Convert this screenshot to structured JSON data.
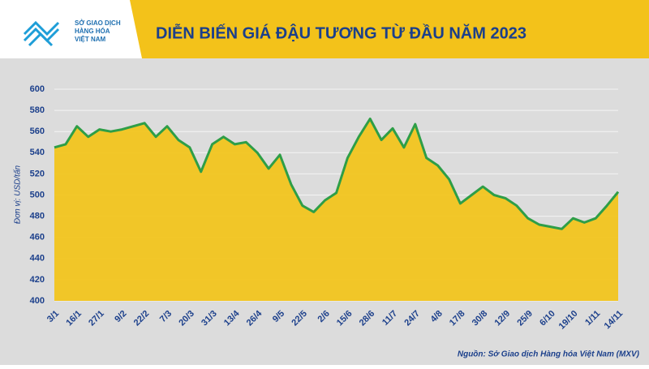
{
  "header": {
    "logo": [
      "SỞ GIAO DỊCH",
      "HÀNG HÓA",
      "VIỆT NAM"
    ]
  },
  "chart_data": {
    "type": "area",
    "title": "DIỄN BIẾN GIÁ ĐẬU TƯƠNG TỪ ĐẦU NĂM 2023",
    "y_label": "Đơn vị: USD/tấn",
    "source": "Nguồn: Sở Giao dịch Hàng hóa Việt Nam (MXV)",
    "categories": [
      "3/1",
      null,
      "16/1",
      null,
      "27/1",
      null,
      "9/2",
      null,
      "22/2",
      null,
      "7/3",
      null,
      "20/3",
      null,
      "31/3",
      null,
      "13/4",
      null,
      "26/4",
      null,
      "9/5",
      null,
      "22/5",
      null,
      "2/6",
      null,
      "15/6",
      null,
      "28/6",
      null,
      "11/7",
      null,
      "24/7",
      null,
      "4/8",
      null,
      "17/8",
      null,
      "30/8",
      null,
      "12/9",
      null,
      "25/9",
      null,
      "6/10",
      null,
      "19/10",
      null,
      "1/11",
      null,
      "14/11"
    ],
    "values": [
      545,
      548,
      565,
      555,
      562,
      560,
      562,
      565,
      568,
      555,
      565,
      552,
      545,
      522,
      548,
      555,
      548,
      550,
      540,
      525,
      538,
      510,
      490,
      484,
      495,
      502,
      535,
      555,
      572,
      552,
      563,
      545,
      567,
      535,
      528,
      515,
      492,
      500,
      508,
      500,
      497,
      490,
      478,
      472,
      470,
      468,
      478,
      474,
      478,
      490,
      503
    ],
    "line_color": "#2e9e47",
    "color": "#f2c318",
    "ylim": [
      400,
      600
    ],
    "yticks": [
      400,
      420,
      440,
      460,
      480,
      500,
      520,
      540,
      560,
      580,
      600
    ],
    "grid": true
  }
}
